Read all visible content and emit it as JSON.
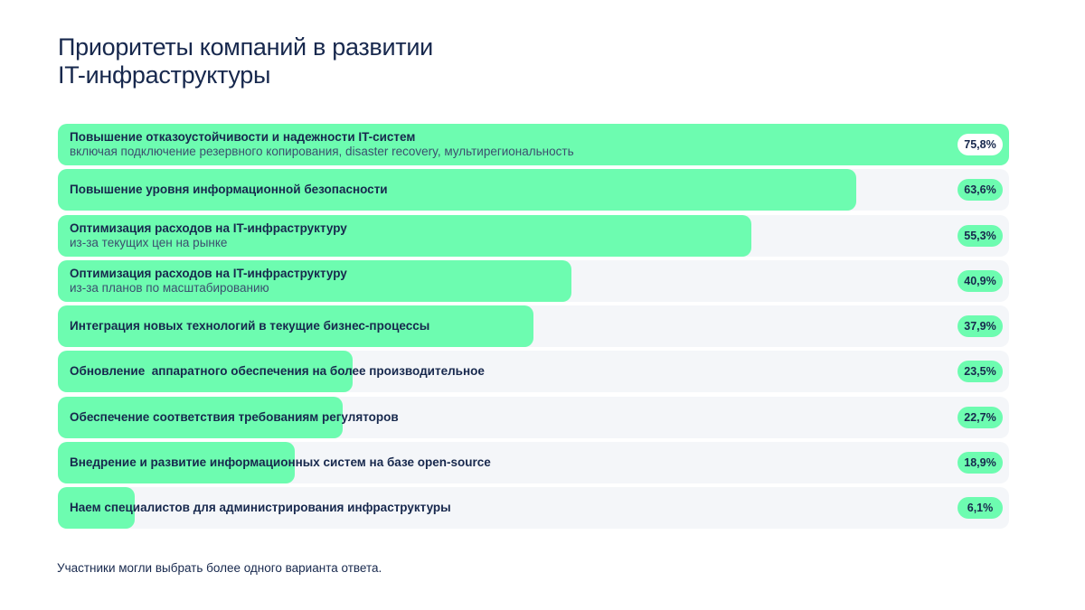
{
  "title": "Приоритеты компаний в развитии\nIT-инфраструктуры",
  "note": "Участники могли выбрать более одного варианта ответа.",
  "colors": {
    "bar": "#6dfcb0",
    "track": "#f4f6f9",
    "text": "#17284d",
    "badge_on_bar": "#ffffff"
  },
  "chart_data": {
    "type": "bar",
    "orientation": "horizontal",
    "xlim": [
      0,
      75.8
    ],
    "categories": [
      {
        "label": "Повышение отказоустойчивости и надежности IT-систем",
        "sublabel": "включая подключение резервного копирования, disaster recovery, мультирегиональность",
        "value": 75.8,
        "value_label": "75,8%"
      },
      {
        "label": "Повышение уровня информационной безопасности",
        "sublabel": "",
        "value": 63.6,
        "value_label": "63,6%"
      },
      {
        "label": "Оптимизация расходов на IT-инфраструктуру",
        "sublabel": "из-за текущих цен на рынке",
        "value": 55.3,
        "value_label": "55,3%"
      },
      {
        "label": "Оптимизация расходов на IT-инфраструктуру",
        "sublabel": "из-за планов по масштабированию",
        "value": 40.9,
        "value_label": "40,9%"
      },
      {
        "label": "Интеграция новых технологий в текущие бизнес-процессы",
        "sublabel": "",
        "value": 37.9,
        "value_label": "37,9%"
      },
      {
        "label": "Обновление  аппаратного обеспечения на более производительное",
        "sublabel": "",
        "value": 23.5,
        "value_label": "23,5%"
      },
      {
        "label": "Обеспечение соответствия требованиям регуляторов",
        "sublabel": "",
        "value": 22.7,
        "value_label": "22,7%"
      },
      {
        "label": "Внедрение и развитие информационных систем на базе open-source",
        "sublabel": "",
        "value": 18.9,
        "value_label": "18,9%"
      },
      {
        "label": "Наем специалистов для администрирования инфраструктуры",
        "sublabel": "",
        "value": 6.1,
        "value_label": "6,1%"
      }
    ]
  }
}
